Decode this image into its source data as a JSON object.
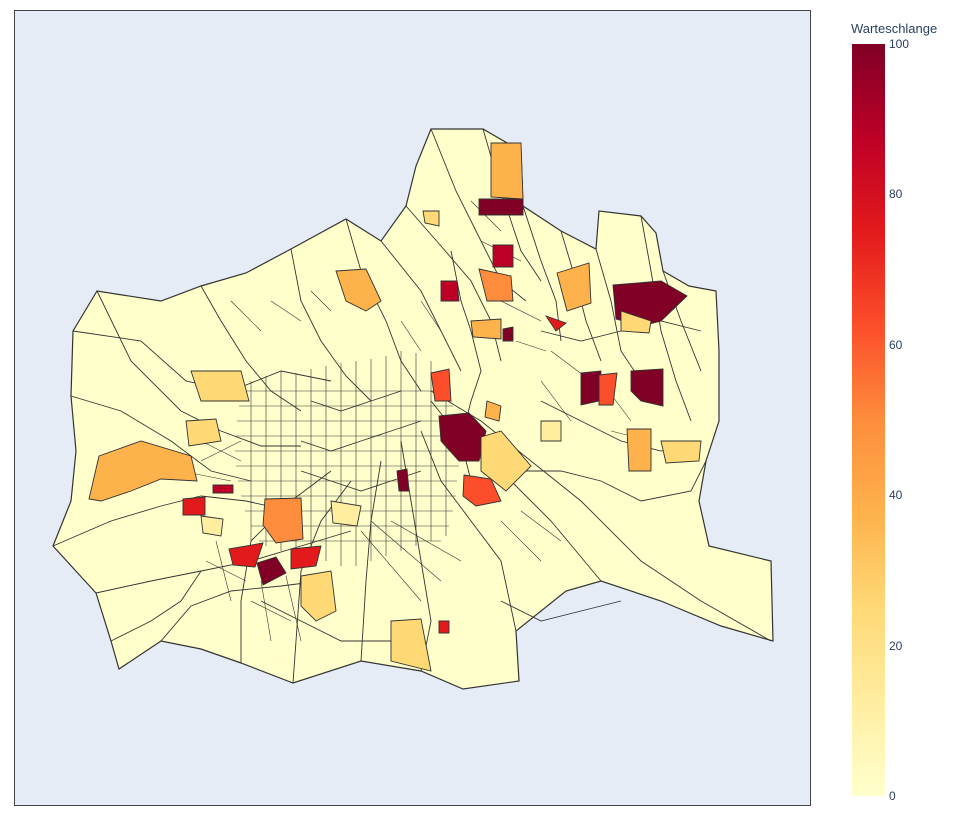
{
  "map": {
    "background_color": "#e5ecf6",
    "region_fill_default": "#ffffcc",
    "border_color": "#222222"
  },
  "colorbar": {
    "title": "Warteschlange",
    "range": [
      0,
      100
    ],
    "ticks": [
      "0",
      "20",
      "40",
      "60",
      "80",
      "100"
    ],
    "colorscale": [
      "#ffffcc",
      "#ffeda0",
      "#fed976",
      "#feb24c",
      "#fd8d3c",
      "#fc4e2a",
      "#e31a1c",
      "#bd0026",
      "#800026"
    ]
  }
}
